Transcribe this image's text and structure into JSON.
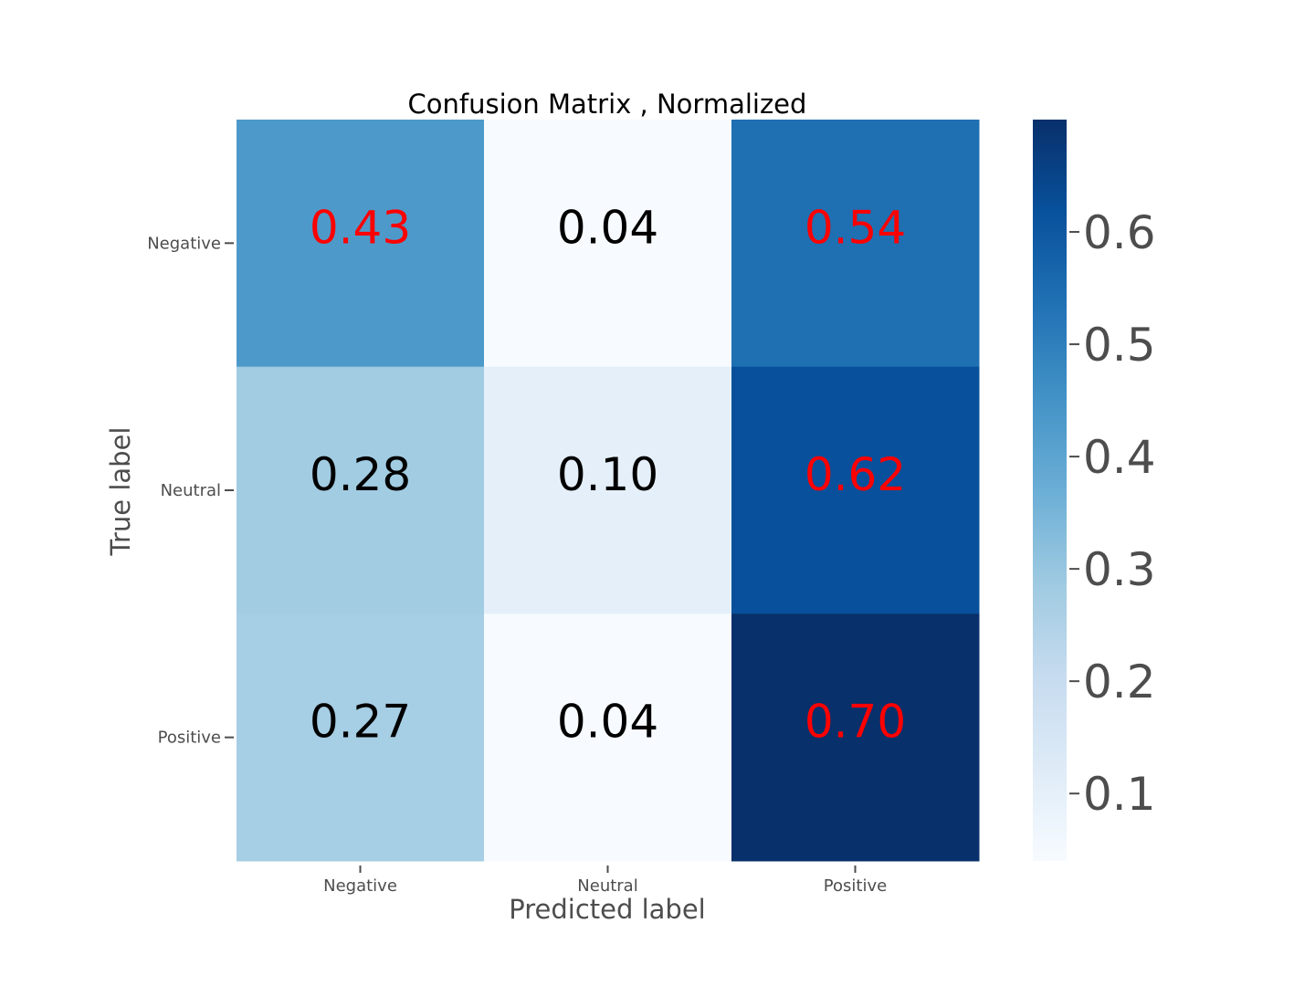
{
  "chart_data": {
    "type": "heatmap",
    "title": "Confusion Matrix , Normalized",
    "xlabel": "Predicted label",
    "ylabel": "True label",
    "x_categories": [
      "Negative",
      "Neutral",
      "Positive"
    ],
    "y_categories": [
      "Negative",
      "Neutral",
      "Positive"
    ],
    "values": [
      [
        0.43,
        0.04,
        0.54
      ],
      [
        0.28,
        0.1,
        0.62
      ],
      [
        0.27,
        0.04,
        0.7
      ]
    ],
    "value_labels": [
      [
        "0.43",
        "0.04",
        "0.54"
      ],
      [
        "0.28",
        "0.10",
        "0.62"
      ],
      [
        "0.27",
        "0.04",
        "0.70"
      ]
    ],
    "label_colors": [
      [
        "#ff0000",
        "#000000",
        "#ff0000"
      ],
      [
        "#000000",
        "#000000",
        "#ff0000"
      ],
      [
        "#000000",
        "#000000",
        "#ff0000"
      ]
    ],
    "colormap": "Blues",
    "colorbar": {
      "range": [
        0.04,
        0.7
      ],
      "ticks": [
        0.1,
        0.2,
        0.3,
        0.4,
        0.5,
        0.6
      ],
      "tick_labels": [
        "0.1",
        "0.2",
        "0.3",
        "0.4",
        "0.5",
        "0.6"
      ]
    },
    "grid": false
  }
}
